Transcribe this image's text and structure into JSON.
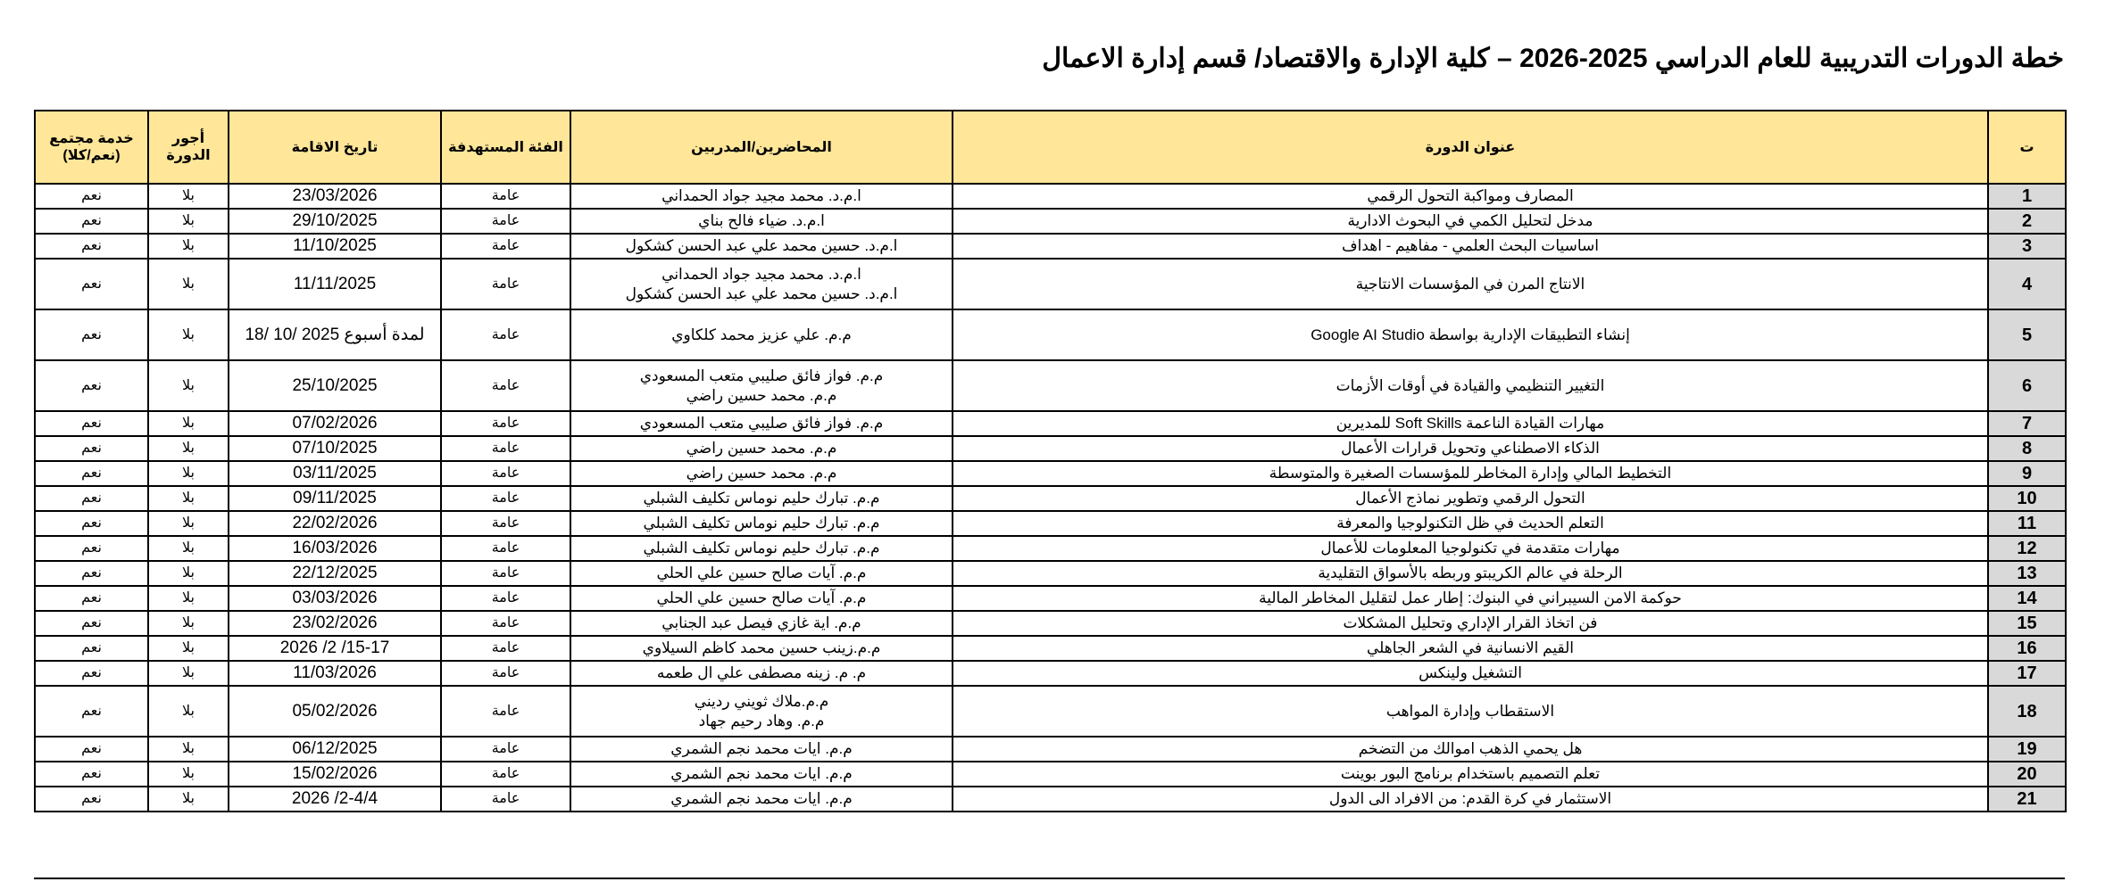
{
  "title": "خطة الدورات التدريبية للعام الدراسي 2025-2026 – كلية الإدارة والاقتصاد/ قسم إدارة الاعمال",
  "colors": {
    "header_bg": "#FFE699",
    "number_col_bg": "#D9D9D9"
  },
  "headers": {
    "num": "ت",
    "course": "عنوان الدورة",
    "lecturers": "المحاضرين/المدربين",
    "audience": "الفئة المستهدفة",
    "date": "تاريخ الاقامة",
    "fees": "أجور الدورة",
    "service": "خدمة مجتمع (نعم/كلا)"
  },
  "rows": [
    {
      "num": "1",
      "course": "المصارف ومواكبة التحول الرقمي",
      "lecturers": "ا.م.د. محمد مجيد جواد الحمداني",
      "audience": "عامة",
      "date": "23/03/2026",
      "fees": "بلا",
      "service": "نعم"
    },
    {
      "num": "2",
      "course": "مدخل لتحليل الكمي في البحوث الادارية",
      "lecturers": "ا.م.د. ضياء فالح بناي",
      "audience": "عامة",
      "date": "29/10/2025",
      "fees": "بلا",
      "service": "نعم"
    },
    {
      "num": "3",
      "course": "اساسيات البحث العلمي - مفاهيم - اهداف",
      "lecturers": "ا.م.د. حسين محمد علي عبد الحسن كشكول",
      "audience": "عامة",
      "date": "11/10/2025",
      "fees": "بلا",
      "service": "نعم"
    },
    {
      "num": "4",
      "course": "الانتاج المرن في المؤسسات الانتاجية",
      "lecturers": "ا.م.د. محمد مجيد جواد الحمداني\nا.م.د. حسين محمد علي عبد الحسن كشكول",
      "audience": "عامة",
      "date": "11/11/2025",
      "fees": "بلا",
      "service": "نعم"
    },
    {
      "num": "5",
      "course": "إنشاء التطبيقات الإدارية بواسطة Google AI Studio",
      "lecturers": "م.م. علي عزيز محمد كلكاوي",
      "audience": "عامة",
      "date": "18/ 10/ 2025 لمدة أسبوع",
      "fees": "بلا",
      "service": "نعم"
    },
    {
      "num": "6",
      "course": "التغيير التنظيمي والقيادة في أوقات الأزمات",
      "lecturers": "م.م. فواز فائق صليبي متعب المسعودي\nم.م. محمد حسين راضي",
      "audience": "عامة",
      "date": "25/10/2025",
      "fees": "بلا",
      "service": "نعم"
    },
    {
      "num": "7",
      "course": "مهارات القيادة الناعمة Soft Skills للمديرين",
      "lecturers": "م.م. فواز فائق صليبي متعب المسعودي",
      "audience": "عامة",
      "date": "07/02/2026",
      "fees": "بلا",
      "service": "نعم"
    },
    {
      "num": "8",
      "course": "الذكاء الاصطناعي وتحويل قرارات الأعمال",
      "lecturers": "م.م. محمد حسين راضي",
      "audience": "عامة",
      "date": "07/10/2025",
      "fees": "بلا",
      "service": "نعم"
    },
    {
      "num": "9",
      "course": "التخطيط المالي وإدارة المخاطر للمؤسسات الصغيرة والمتوسطة",
      "lecturers": "م.م. محمد حسين راضي",
      "audience": "عامة",
      "date": "03/11/2025",
      "fees": "بلا",
      "service": "نعم"
    },
    {
      "num": "10",
      "course": "التحول الرقمي وتطوير نماذج الأعمال",
      "lecturers": "م.م. تبارك حليم نوماس تكليف الشبلي",
      "audience": "عامة",
      "date": "09/11/2025",
      "fees": "بلا",
      "service": "نعم"
    },
    {
      "num": "11",
      "course": "التعلم الحديث في ظل التكنولوجيا والمعرفة",
      "lecturers": "م.م. تبارك حليم نوماس تكليف الشبلي",
      "audience": "عامة",
      "date": "22/02/2026",
      "fees": "بلا",
      "service": "نعم"
    },
    {
      "num": "12",
      "course": "مهارات متقدمة في تكنولوجيا المعلومات للأعمال",
      "lecturers": "م.م. تبارك حليم نوماس تكليف الشبلي",
      "audience": "عامة",
      "date": "16/03/2026",
      "fees": "بلا",
      "service": "نعم"
    },
    {
      "num": "13",
      "course": "الرحلة في عالم الكريبتو وربطه بالأسواق التقليدية",
      "lecturers": "م.م. آيات صالح حسين علي الحلي",
      "audience": "عامة",
      "date": "22/12/2025",
      "fees": "بلا",
      "service": "نعم"
    },
    {
      "num": "14",
      "course": "حوكمة الامن السيبراني في البنوك: إطار عمل لتقليل المخاطر المالية",
      "lecturers": "م.م. آيات صالح حسين علي الحلي",
      "audience": "عامة",
      "date": "03/03/2026",
      "fees": "بلا",
      "service": "نعم"
    },
    {
      "num": "15",
      "course": "فن اتخاذ القرار الإداري وتحليل المشكلات",
      "lecturers": "م.م. اية غازي فيصل عبد الجنابي",
      "audience": "عامة",
      "date": "23/02/2026",
      "fees": "بلا",
      "service": "نعم"
    },
    {
      "num": "16",
      "course": "القيم الانسانية في الشعر الجاهلي",
      "lecturers": "م.م.زينب حسين محمد كاظم السيلاوي",
      "audience": "عامة",
      "date": "2026 /2 /15-17",
      "fees": "بلا",
      "service": "نعم"
    },
    {
      "num": "17",
      "course": "التشغيل ولينكس",
      "lecturers": "م. م. زينه مصطفى علي ال طعمه",
      "audience": "عامة",
      "date": "11/03/2026",
      "fees": "بلا",
      "service": "نعم"
    },
    {
      "num": "18",
      "course": "الاستقطاب وإدارة المواهب",
      "lecturers": "م.م.ملاك ثويني رديني\nم.م. وهاد رحيم جهاد",
      "audience": "عامة",
      "date": "05/02/2026",
      "fees": "بلا",
      "service": "نعم"
    },
    {
      "num": "19",
      "course": "هل يحمي الذهب اموالك من التضخم",
      "lecturers": "م.م. ايات محمد نجم الشمري",
      "audience": "عامة",
      "date": "06/12/2025",
      "fees": "بلا",
      "service": "نعم"
    },
    {
      "num": "20",
      "course": "تعلم التصميم باستخدام برنامج البور بوينت",
      "lecturers": "م.م. ايات محمد نجم الشمري",
      "audience": "عامة",
      "date": "15/02/2026",
      "fees": "بلا",
      "service": "نعم"
    },
    {
      "num": "21",
      "course": "الاستثمار في كرة القدم: من الافراد الى الدول",
      "lecturers": "م.م. ايات محمد نجم الشمري",
      "audience": "عامة",
      "date": "2026 /2-4/4",
      "fees": "بلا",
      "service": "نعم"
    }
  ]
}
